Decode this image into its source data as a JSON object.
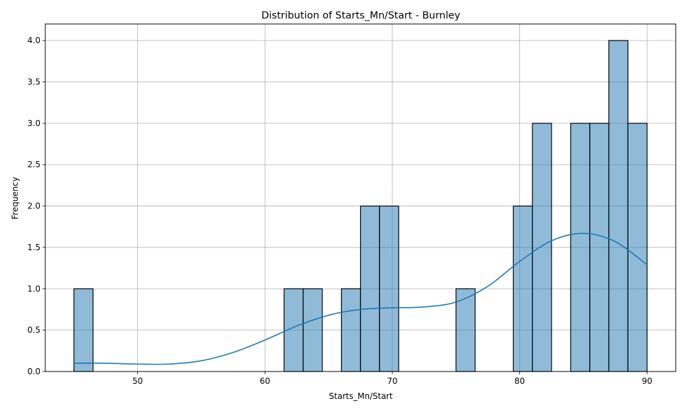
{
  "chart_data": {
    "type": "bar",
    "title": "Distribution of Starts_Mn/Start - Burnley",
    "xlabel": "Starts_Mn/Start",
    "ylabel": "Frequency",
    "xlim": [
      42.75,
      92.25
    ],
    "ylim": [
      0,
      4.2
    ],
    "xticks": [
      50,
      60,
      70,
      80,
      90
    ],
    "xtick_labels": [
      "50",
      "60",
      "70",
      "80",
      "90"
    ],
    "yticks": [
      0,
      0.5,
      1,
      1.5,
      2,
      2.5,
      3,
      3.5,
      4
    ],
    "ytick_labels": [
      "0.0",
      "0.5",
      "1.0",
      "1.5",
      "2.0",
      "2.5",
      "3.0",
      "3.5",
      "4.0"
    ],
    "grid": true,
    "bin_start": 45,
    "bin_width": 1.5,
    "bin_counts": [
      1,
      0,
      0,
      0,
      0,
      0,
      0,
      0,
      0,
      0,
      0,
      1,
      1,
      0,
      1,
      2,
      2,
      0,
      0,
      0,
      1,
      0,
      0,
      2,
      3,
      0,
      3,
      3,
      4,
      3
    ],
    "kde": {
      "x": [
        45,
        47.5,
        50,
        52.5,
        55,
        57.5,
        60,
        62.5,
        65,
        67.5,
        70,
        72.5,
        75,
        77.5,
        80,
        82.5,
        85,
        87.5,
        90
      ],
      "y": [
        0.1,
        0.1,
        0.09,
        0.09,
        0.13,
        0.23,
        0.38,
        0.55,
        0.68,
        0.75,
        0.77,
        0.78,
        0.84,
        1.03,
        1.33,
        1.58,
        1.67,
        1.57,
        1.29
      ]
    },
    "colors": {
      "bar_fill": "#1f77b4",
      "bar_fill_opacity": "0.5",
      "bar_edge": "#000000",
      "kde_line": "#1f77b4",
      "grid": "#b0b0b0"
    }
  }
}
